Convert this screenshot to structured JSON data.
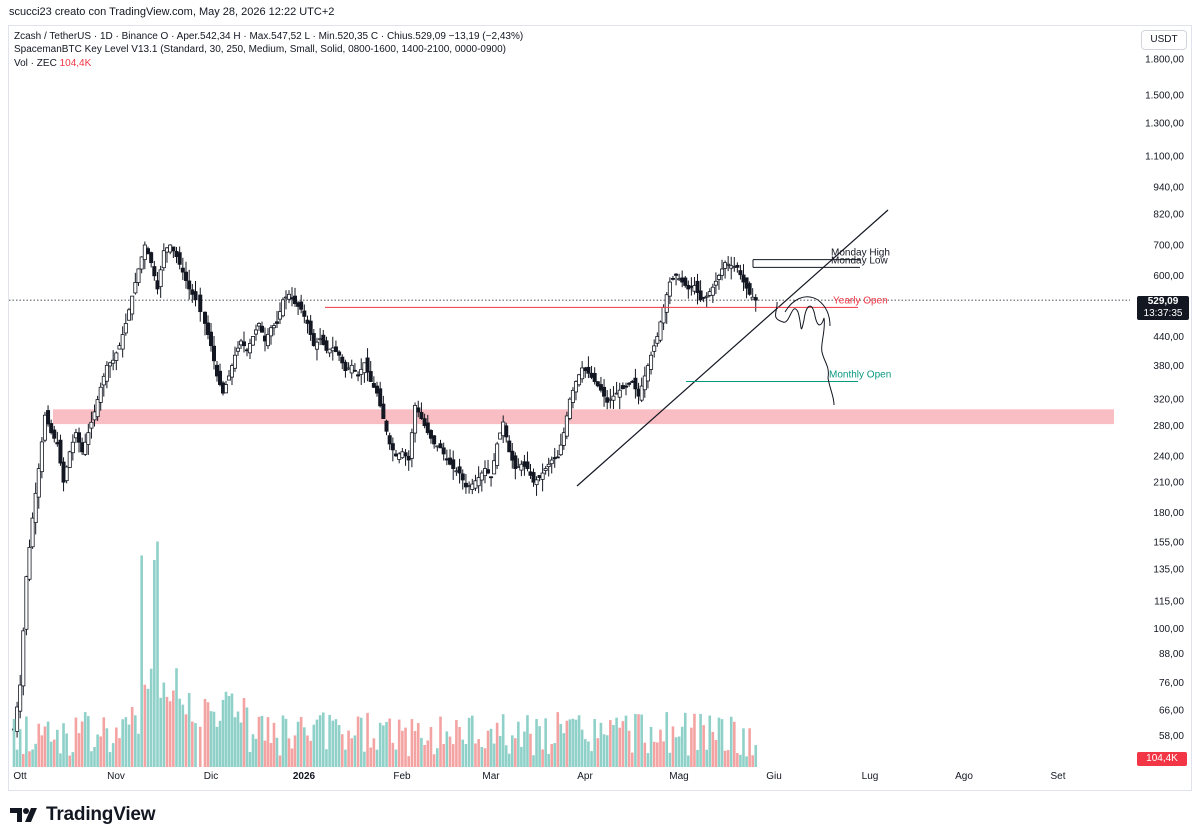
{
  "caption": "scucci23 creato con TradingView.com, May 28, 2026 12:22 UTC+2",
  "legend": {
    "line1": "Zcash / TetherUS · 1D · Binance  O · Aper.542,34  H · Max.547,52  L · Min.520,35  C · Chius.529,09  −13,19 (−2,43%)",
    "line2": "SpacemanBTC Key Level V13.1 (Standard, 30, 250, Medium, Small, Solid, 0800-1600, 1400-2100, 0000-0900)",
    "vol_label": "Vol · ZEC",
    "vol_value": "104,4K"
  },
  "unit_button": "USDT",
  "last_price": {
    "price": "529,09",
    "countdown": "13:37:35"
  },
  "volume_tag": "104,4K",
  "brand": "TradingView",
  "colors": {
    "up": "#26a69a",
    "down": "#ef5350",
    "candle": "#131722",
    "zone": "#f8b7bd",
    "yearly": "#f23645",
    "monthly": "#089981"
  },
  "chart_data": {
    "type": "candlestick",
    "scale": "log",
    "y_ticks": [
      "1.800,00",
      "1.500,00",
      "1.300,00",
      "1.100,00",
      "940,00",
      "820,00",
      "700,00",
      "600,00",
      "440,00",
      "380,00",
      "320,00",
      "280,00",
      "240,00",
      "210,00",
      "180,00",
      "155,00",
      "135,00",
      "115,00",
      "100,00",
      "88,00",
      "76,00",
      "66,00",
      "58,00"
    ],
    "x_ticks": [
      "Ott",
      "Nov",
      "Dic",
      "2026",
      "Feb",
      "Mar",
      "Apr",
      "Mag",
      "Giu",
      "Lug",
      "Ago",
      "Set"
    ],
    "key_levels": [
      {
        "label": "Monday High",
        "price": 650
      },
      {
        "label": "Monday Low",
        "price": 625
      },
      {
        "label": "Yearly Open",
        "price": 510
      },
      {
        "label": "Monthly Open",
        "price": 350
      }
    ],
    "support_zone": [
      282,
      304
    ],
    "ohlc_path": [
      [
        "10-01",
        60
      ],
      [
        "10-03",
        75
      ],
      [
        "10-05",
        130
      ],
      [
        "10-07",
        175
      ],
      [
        "10-09",
        225
      ],
      [
        "10-11",
        295
      ],
      [
        "10-13",
        270
      ],
      [
        "10-15",
        255
      ],
      [
        "10-17",
        210
      ],
      [
        "10-19",
        245
      ],
      [
        "10-21",
        270
      ],
      [
        "10-23",
        245
      ],
      [
        "10-25",
        270
      ],
      [
        "10-27",
        300
      ],
      [
        "10-29",
        340
      ],
      [
        "10-31",
        380
      ],
      [
        "11-02",
        390
      ],
      [
        "11-04",
        420
      ],
      [
        "11-06",
        470
      ],
      [
        "11-08",
        540
      ],
      [
        "11-10",
        620
      ],
      [
        "11-12",
        700
      ],
      [
        "11-14",
        640
      ],
      [
        "11-16",
        560
      ],
      [
        "11-18",
        680
      ],
      [
        "11-20",
        700
      ],
      [
        "11-22",
        660
      ],
      [
        "11-24",
        610
      ],
      [
        "11-26",
        560
      ],
      [
        "11-28",
        530
      ],
      [
        "12-01",
        470
      ],
      [
        "12-03",
        420
      ],
      [
        "12-05",
        360
      ],
      [
        "12-07",
        330
      ],
      [
        "12-09",
        360
      ],
      [
        "12-11",
        400
      ],
      [
        "12-13",
        430
      ],
      [
        "12-15",
        410
      ],
      [
        "12-17",
        440
      ],
      [
        "12-19",
        470
      ],
      [
        "12-21",
        430
      ],
      [
        "12-23",
        460
      ],
      [
        "12-25",
        470
      ],
      [
        "12-27",
        530
      ],
      [
        "12-29",
        545
      ],
      [
        "12-31",
        520
      ],
      [
        "01-02",
        505
      ],
      [
        "01-04",
        470
      ],
      [
        "01-06",
        420
      ],
      [
        "01-08",
        435
      ],
      [
        "01-10",
        410
      ],
      [
        "01-12",
        415
      ],
      [
        "01-14",
        400
      ],
      [
        "01-16",
        370
      ],
      [
        "01-18",
        380
      ],
      [
        "01-20",
        360
      ],
      [
        "01-22",
        385
      ],
      [
        "01-24",
        350
      ],
      [
        "01-26",
        330
      ],
      [
        "01-28",
        290
      ],
      [
        "01-30",
        255
      ],
      [
        "02-01",
        240
      ],
      [
        "02-03",
        245
      ],
      [
        "02-05",
        235
      ],
      [
        "02-07",
        310
      ],
      [
        "02-09",
        290
      ],
      [
        "02-11",
        270
      ],
      [
        "02-13",
        255
      ],
      [
        "02-15",
        250
      ],
      [
        "02-17",
        235
      ],
      [
        "02-19",
        225
      ],
      [
        "02-21",
        220
      ],
      [
        "02-23",
        205
      ],
      [
        "02-25",
        208
      ],
      [
        "02-27",
        215
      ],
      [
        "03-01",
        225
      ],
      [
        "03-03",
        215
      ],
      [
        "03-05",
        255
      ],
      [
        "03-07",
        285
      ],
      [
        "03-09",
        245
      ],
      [
        "03-11",
        225
      ],
      [
        "03-13",
        230
      ],
      [
        "03-15",
        225
      ],
      [
        "03-17",
        210
      ],
      [
        "03-19",
        215
      ],
      [
        "03-21",
        225
      ],
      [
        "03-23",
        235
      ],
      [
        "03-25",
        238
      ],
      [
        "03-27",
        270
      ],
      [
        "03-29",
        320
      ],
      [
        "03-31",
        350
      ],
      [
        "04-02",
        375
      ],
      [
        "04-04",
        365
      ],
      [
        "04-06",
        350
      ],
      [
        "04-08",
        335
      ],
      [
        "04-10",
        315
      ],
      [
        "04-12",
        325
      ],
      [
        "04-14",
        335
      ],
      [
        "04-16",
        340
      ],
      [
        "04-18",
        350
      ],
      [
        "04-20",
        325
      ],
      [
        "04-22",
        360
      ],
      [
        "04-24",
        400
      ],
      [
        "04-26",
        440
      ],
      [
        "04-28",
        510
      ],
      [
        "04-30",
        580
      ],
      [
        "05-02",
        600
      ],
      [
        "05-04",
        580
      ],
      [
        "05-06",
        560
      ],
      [
        "05-08",
        570
      ],
      [
        "05-10",
        530
      ],
      [
        "05-12",
        540
      ],
      [
        "05-14",
        565
      ],
      [
        "05-16",
        600
      ],
      [
        "05-18",
        640
      ],
      [
        "05-20",
        630
      ],
      [
        "05-22",
        625
      ],
      [
        "05-24",
        580
      ],
      [
        "05-26",
        545
      ],
      [
        "05-28",
        529
      ]
    ]
  }
}
